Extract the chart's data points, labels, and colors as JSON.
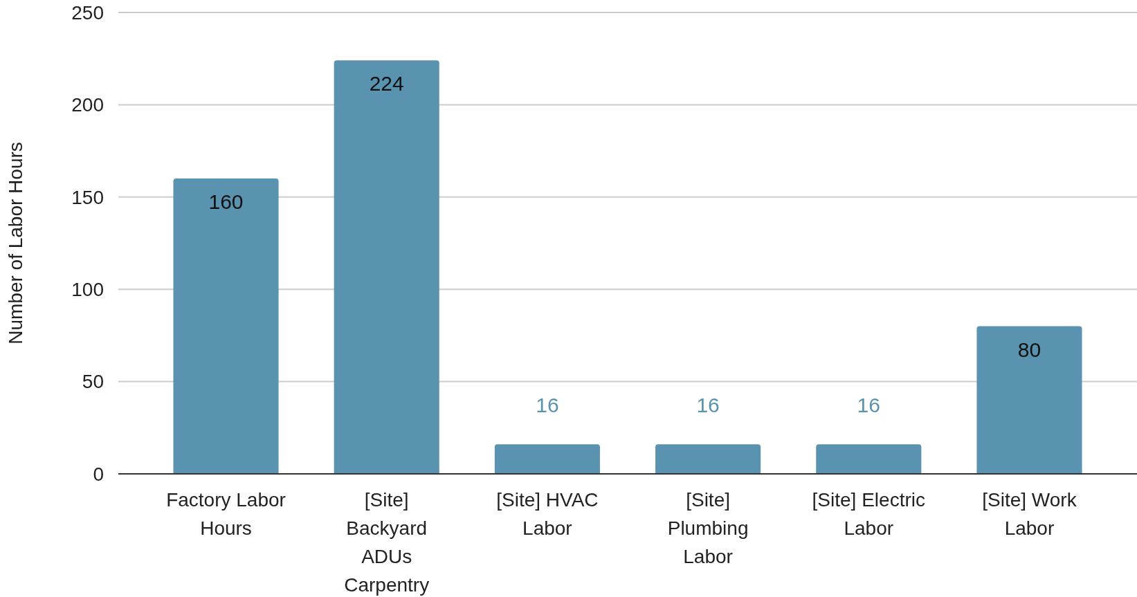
{
  "chart_data": {
    "type": "bar",
    "ylabel": "Number of Labor Hours",
    "categories": [
      "Factory Labor Hours",
      "[Site] Backyard ADUs Carpentry",
      "[Site] HVAC Labor",
      "[Site] Plumbing Labor",
      "[Site] Electric Labor",
      "[Site] Work Labor"
    ],
    "values": [
      160,
      224,
      16,
      16,
      16,
      80
    ],
    "color": "#5a93b0",
    "ylim": [
      0,
      250
    ],
    "yticks": [
      0,
      50,
      100,
      150,
      200,
      250
    ],
    "grid": "y",
    "data_labels": true
  }
}
